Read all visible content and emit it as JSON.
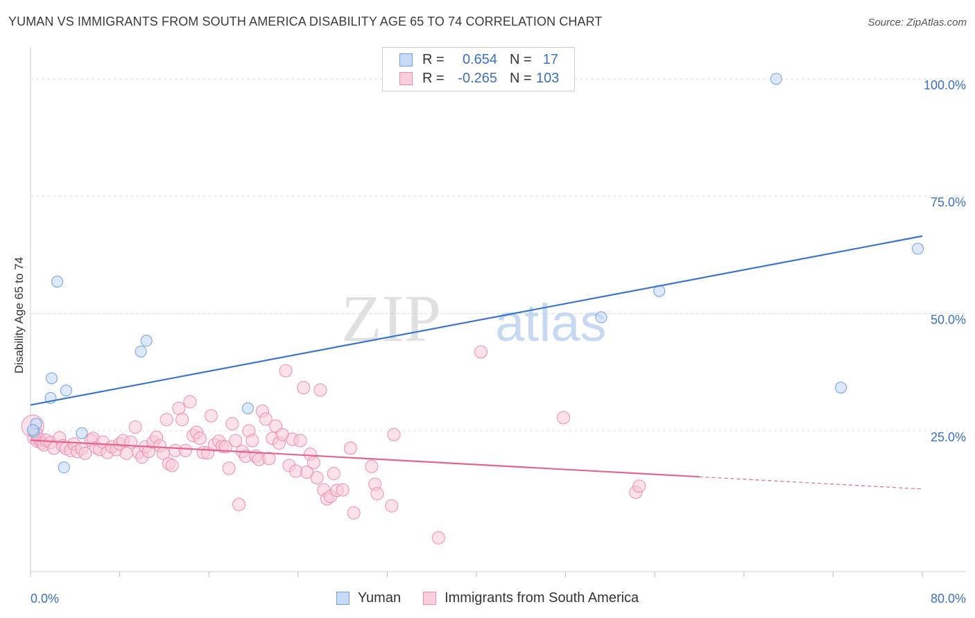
{
  "header": {
    "title": "YUMAN VS IMMIGRANTS FROM SOUTH AMERICA DISABILITY AGE 65 TO 74 CORRELATION CHART",
    "source": "Source: ZipAtlas.com"
  },
  "watermark": {
    "zip": "ZIP",
    "atlas": "atlas"
  },
  "legend": {
    "rows": [
      {
        "r_label": "R =",
        "r_value": "0.654",
        "n_label": "N =",
        "n_value": "17"
      },
      {
        "r_label": "R =",
        "r_value": "-0.265",
        "n_label": "N =",
        "n_value": "103"
      }
    ]
  },
  "chart_data": {
    "type": "scatter",
    "title": "YUMAN VS IMMIGRANTS FROM SOUTH AMERICA DISABILITY AGE 65 TO 74 CORRELATION CHART",
    "xlabel": "",
    "ylabel": "Disability Age 65 to 74",
    "xlim": [
      0,
      80
    ],
    "ylim": [
      -5,
      105
    ],
    "x_tick_labels": [
      "0.0%",
      "80.0%"
    ],
    "y_ticks": [
      25,
      50,
      75,
      100
    ],
    "y_tick_labels": [
      "25.0%",
      "50.0%",
      "75.0%",
      "100.0%"
    ],
    "grid": true,
    "legend_placement": "top-center",
    "colors": {
      "yuman": "#6e9fe0",
      "yuman_line": "#3a75c8",
      "immigrants": "#f08aac",
      "immigrants_line": "#e2648f",
      "tick_text": "#3b6fc4"
    },
    "series": [
      {
        "name": "Yuman",
        "points": [
          [
            0.3,
            24.8
          ],
          [
            0.5,
            26.5
          ],
          [
            1.8,
            32.0
          ],
          [
            1.9,
            36.2
          ],
          [
            2.4,
            56.8
          ],
          [
            3.0,
            17.2
          ],
          [
            3.2,
            33.6
          ],
          [
            4.6,
            24.5
          ],
          [
            9.9,
            41.9
          ],
          [
            10.4,
            44.2
          ],
          [
            19.5,
            29.8
          ],
          [
            51.2,
            49.2
          ],
          [
            56.4,
            54.8
          ],
          [
            66.9,
            100.0
          ],
          [
            72.7,
            34.2
          ],
          [
            79.6,
            63.8
          ],
          [
            0.2,
            25.2
          ]
        ],
        "trend": {
          "x0": 0,
          "y0": 30.5,
          "x1": 80,
          "y1": 66.5
        }
      },
      {
        "name": "Immigrants from South America",
        "points": [
          [
            0.2,
            26.0
          ],
          [
            0.3,
            23.5
          ],
          [
            0.5,
            24.5
          ],
          [
            0.6,
            22.8
          ],
          [
            0.8,
            23.2
          ],
          [
            1.0,
            22.4
          ],
          [
            1.2,
            22.0
          ],
          [
            1.4,
            23.0
          ],
          [
            1.8,
            22.5
          ],
          [
            2.1,
            21.3
          ],
          [
            2.6,
            23.5
          ],
          [
            2.9,
            21.8
          ],
          [
            3.2,
            21.2
          ],
          [
            3.6,
            20.8
          ],
          [
            3.9,
            22.2
          ],
          [
            4.2,
            20.6
          ],
          [
            4.6,
            21.2
          ],
          [
            4.9,
            20.2
          ],
          [
            5.4,
            23.0
          ],
          [
            5.6,
            23.4
          ],
          [
            5.9,
            21.4
          ],
          [
            6.2,
            21.0
          ],
          [
            6.5,
            22.6
          ],
          [
            6.9,
            20.4
          ],
          [
            7.3,
            21.6
          ],
          [
            7.7,
            21.0
          ],
          [
            8.0,
            22.2
          ],
          [
            8.3,
            22.9
          ],
          [
            8.6,
            20.2
          ],
          [
            9.0,
            22.6
          ],
          [
            9.4,
            25.8
          ],
          [
            9.7,
            20.4
          ],
          [
            10.0,
            19.4
          ],
          [
            10.3,
            21.6
          ],
          [
            10.6,
            20.6
          ],
          [
            11.0,
            22.6
          ],
          [
            11.3,
            23.6
          ],
          [
            11.6,
            21.8
          ],
          [
            11.9,
            20.2
          ],
          [
            12.2,
            27.4
          ],
          [
            12.4,
            18.0
          ],
          [
            12.7,
            17.6
          ],
          [
            13.0,
            20.8
          ],
          [
            13.3,
            29.8
          ],
          [
            13.6,
            27.4
          ],
          [
            13.9,
            20.8
          ],
          [
            14.3,
            31.2
          ],
          [
            14.6,
            24.0
          ],
          [
            14.9,
            24.7
          ],
          [
            15.2,
            23.4
          ],
          [
            15.5,
            20.4
          ],
          [
            15.9,
            20.3
          ],
          [
            16.2,
            28.2
          ],
          [
            16.5,
            22.0
          ],
          [
            16.9,
            22.8
          ],
          [
            17.2,
            21.7
          ],
          [
            17.5,
            21.6
          ],
          [
            17.8,
            17.0
          ],
          [
            18.1,
            26.5
          ],
          [
            18.4,
            22.9
          ],
          [
            18.7,
            9.3
          ],
          [
            19.0,
            20.6
          ],
          [
            19.3,
            19.6
          ],
          [
            19.6,
            25.0
          ],
          [
            19.9,
            22.9
          ],
          [
            20.2,
            19.6
          ],
          [
            20.5,
            18.9
          ],
          [
            20.8,
            29.2
          ],
          [
            21.1,
            27.5
          ],
          [
            21.4,
            19.1
          ],
          [
            21.7,
            23.4
          ],
          [
            22.0,
            26.0
          ],
          [
            22.3,
            22.4
          ],
          [
            22.6,
            24.2
          ],
          [
            22.9,
            37.8
          ],
          [
            23.2,
            17.6
          ],
          [
            23.5,
            23.2
          ],
          [
            23.8,
            16.4
          ],
          [
            24.2,
            22.9
          ],
          [
            24.5,
            34.2
          ],
          [
            24.8,
            16.2
          ],
          [
            25.1,
            20.0
          ],
          [
            25.4,
            18.2
          ],
          [
            25.7,
            15.0
          ],
          [
            26.0,
            33.7
          ],
          [
            26.3,
            12.4
          ],
          [
            26.6,
            10.5
          ],
          [
            26.9,
            11.0
          ],
          [
            27.2,
            15.9
          ],
          [
            27.5,
            12.3
          ],
          [
            28.0,
            12.4
          ],
          [
            28.7,
            21.3
          ],
          [
            29.0,
            7.5
          ],
          [
            30.6,
            17.4
          ],
          [
            30.9,
            13.6
          ],
          [
            31.1,
            11.6
          ],
          [
            32.4,
            9.0
          ],
          [
            32.6,
            24.2
          ],
          [
            36.6,
            2.2
          ],
          [
            40.4,
            41.8
          ],
          [
            47.8,
            27.8
          ],
          [
            54.3,
            11.9
          ],
          [
            54.6,
            13.2
          ]
        ],
        "trend": {
          "x0": 0,
          "y0": 23.0,
          "x1": 60,
          "y1": 15.2
        },
        "trend_dashed": {
          "x0": 60,
          "y0": 15.2,
          "x1": 80,
          "y1": 12.6
        }
      }
    ]
  },
  "bottom_legend": {
    "items": [
      {
        "label": "Yuman"
      },
      {
        "label": "Immigrants from South America"
      }
    ]
  }
}
